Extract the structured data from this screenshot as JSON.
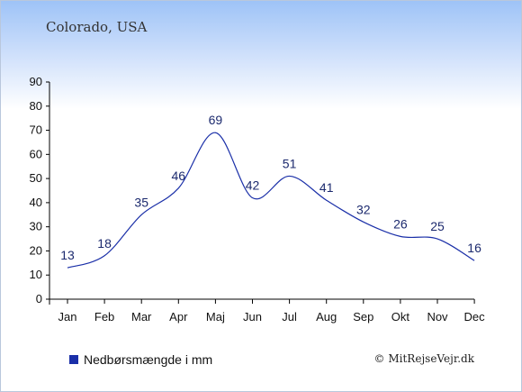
{
  "chart_data": {
    "type": "line",
    "title": "Colorado, USA",
    "categories": [
      "Jan",
      "Feb",
      "Mar",
      "Apr",
      "Maj",
      "Jun",
      "Jul",
      "Aug",
      "Sep",
      "Okt",
      "Nov",
      "Dec"
    ],
    "series": [
      {
        "name": "Nedbørsmængde i mm",
        "values": [
          13,
          18,
          35,
          46,
          69,
          42,
          51,
          41,
          32,
          26,
          25,
          16
        ],
        "color": "#1a2fa8"
      }
    ],
    "ylim": [
      0,
      90
    ],
    "yticks": [
      0,
      10,
      20,
      30,
      40,
      50,
      60,
      70,
      80,
      90
    ],
    "legend": "bottom-left",
    "grid": false
  },
  "legend_label": "Nedbørsmængde i mm",
  "credit": "© MitRejseVejr.dk"
}
